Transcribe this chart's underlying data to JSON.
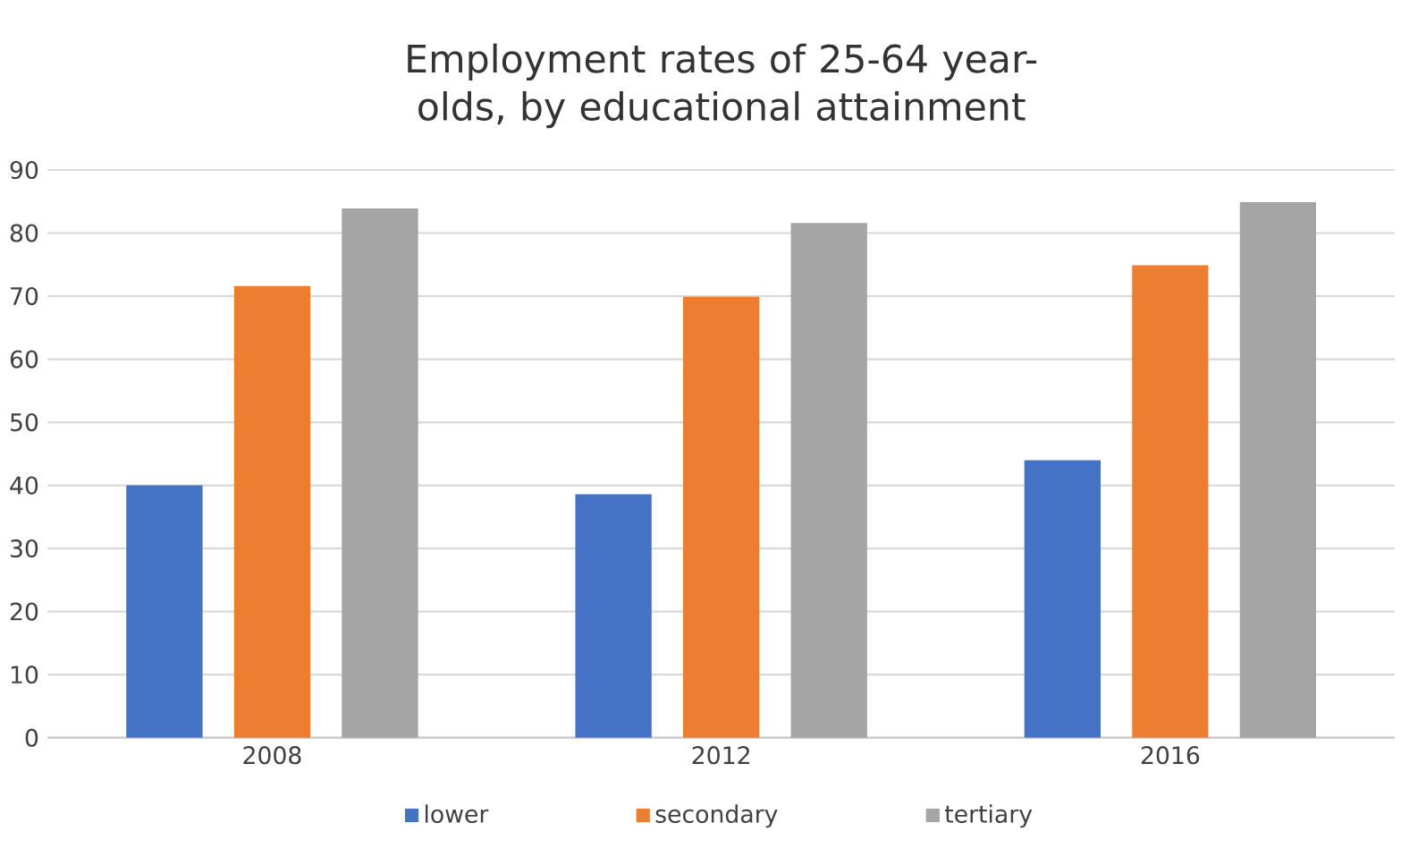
{
  "chart_data": {
    "type": "bar",
    "title": "Employment rates of 25-64 year-olds, by educational attainment",
    "categories": [
      "2008",
      "2012",
      "2016"
    ],
    "series": [
      {
        "name": "lower",
        "color": "#4472c4",
        "values": [
          40.0,
          38.6,
          44.0
        ]
      },
      {
        "name": "secondary",
        "color": "#ed7d31",
        "values": [
          71.6,
          69.9,
          74.9
        ]
      },
      {
        "name": "tertiary",
        "color": "#a5a5a5",
        "values": [
          83.9,
          81.6,
          84.9
        ]
      }
    ],
    "ylim": [
      0,
      90
    ],
    "yticks": [
      0,
      10,
      20,
      30,
      40,
      50,
      60,
      70,
      80,
      90
    ],
    "grid": "y",
    "legend": "bottom"
  }
}
